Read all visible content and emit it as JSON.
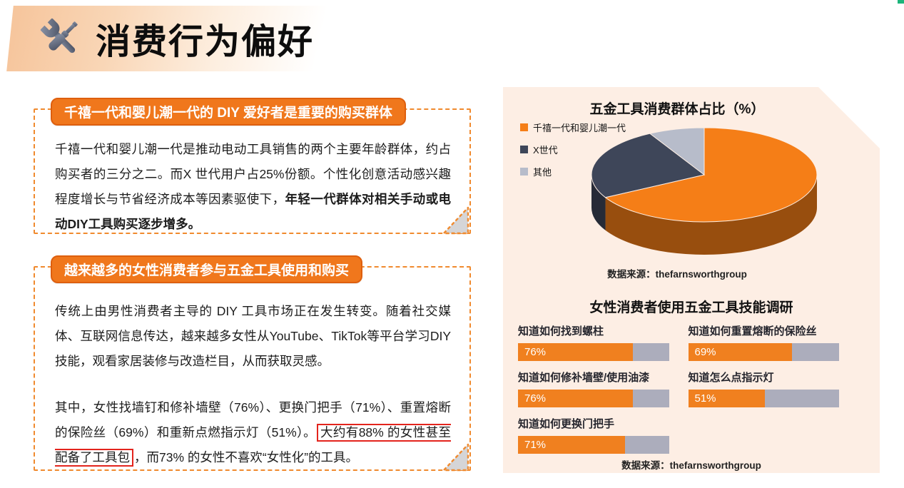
{
  "header": {
    "title": "消费行为偏好",
    "icon": "crossed-wrench-screwdriver"
  },
  "accent": {
    "orange": "#F0771C",
    "orange_border": "#DE5F0E",
    "dashed_border": "#F08A2E",
    "panel_bg": "#FDEEE4",
    "red_highlight": "#E3241D",
    "navy": "#3E4659",
    "light_gray": "#B7BCCA",
    "bar_track_gray": "#ACADBC",
    "corner_mark_green": "#1CB57B"
  },
  "boxes": [
    {
      "header": "千禧一代和婴儿潮一代的 DIY 爱好者是重要的购买群体",
      "paragraphs": [
        {
          "segments": [
            {
              "style": "normal",
              "text": "千禧一代和婴儿潮一代是推动电动工具销售的两个主要年龄群体，约占购买者的三分之二。而X 世代用户占25%份额。个性化创意活动感兴趣程度增长与节省经济成本等因素驱使下，"
            },
            {
              "style": "bold",
              "text": "年轻一代群体对相关手动或电动DIY工具购买逐步增多。"
            }
          ]
        }
      ]
    },
    {
      "header": "越来越多的女性消费者参与五金工具使用和购买",
      "paragraphs": [
        {
          "segments": [
            {
              "style": "normal",
              "text": "传统上由男性消费者主导的 DIY 工具市场正在发生转变。随着社交媒体、互联网信息传达，越来越多女性从YouTube、TikTok等平台学习DIY技能，观看家居装修与改造栏目，从而获取灵感。"
            }
          ]
        },
        {
          "segments": [
            {
              "style": "normal",
              "text": "其中，女性找墙钉和修补墙壁（76%）、更换门把手（71%）、重置熔断的保险丝（69%）和重新点燃指示灯（51%）。"
            },
            {
              "style": "redbox",
              "text": "大约有88% 的女性甚至配备了工具包"
            },
            {
              "style": "normal",
              "text": "，而73% 的女性不喜欢“女性化”的工具。"
            }
          ]
        }
      ]
    }
  ],
  "chart_data": [
    {
      "type": "pie",
      "style": "3d",
      "title": "五金工具消费群体占比（%）",
      "labels": [
        "千禧一代和婴儿潮一代",
        "X世代",
        "其他"
      ],
      "values": [
        67,
        25,
        8
      ],
      "colors": [
        "#F57E17",
        "#3E4659",
        "#B7BCCA"
      ],
      "legend_position": "left",
      "source": "数据来源：thefarnsworthgroup"
    },
    {
      "type": "bar",
      "orientation": "horizontal",
      "title": "女性消费者使用五金工具技能调研",
      "categories": [
        "知道如何找到螺柱",
        "知道如何重置熔断的保险丝",
        "知道如何修补墙壁/使用油漆",
        "知道怎么点指示灯",
        "知道如何更换门把手"
      ],
      "values": [
        76,
        69,
        76,
        51,
        71
      ],
      "value_labels": [
        "76%",
        "69%",
        "76%",
        "51%",
        "71%"
      ],
      "xlim": [
        0,
        100
      ],
      "bar_color": "#F0801F",
      "track_color": "#ACADBC",
      "grid": false,
      "source": "数据来源：thefarnsworthgroup"
    }
  ]
}
